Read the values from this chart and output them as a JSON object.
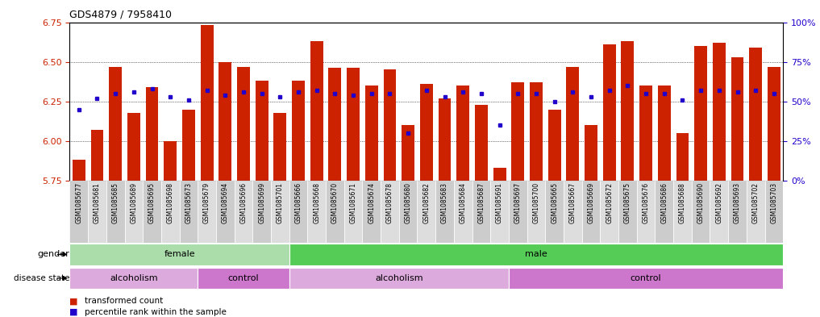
{
  "title": "GDS4879 / 7958410",
  "samples": [
    "GSM1085677",
    "GSM1085681",
    "GSM1085685",
    "GSM1085689",
    "GSM1085695",
    "GSM1085698",
    "GSM1085673",
    "GSM1085679",
    "GSM1085694",
    "GSM1085696",
    "GSM1085699",
    "GSM1085701",
    "GSM1085666",
    "GSM1085668",
    "GSM1085670",
    "GSM1085671",
    "GSM1085674",
    "GSM1085678",
    "GSM1085680",
    "GSM1085682",
    "GSM1085683",
    "GSM1085684",
    "GSM1085687",
    "GSM1085691",
    "GSM1085697",
    "GSM1085700",
    "GSM1085665",
    "GSM1085667",
    "GSM1085669",
    "GSM1085672",
    "GSM1085675",
    "GSM1085676",
    "GSM1085686",
    "GSM1085688",
    "GSM1085690",
    "GSM1085692",
    "GSM1085693",
    "GSM1085702",
    "GSM1085703"
  ],
  "bar_values": [
    5.88,
    6.07,
    6.47,
    6.18,
    6.34,
    6.0,
    6.2,
    6.73,
    6.5,
    6.47,
    6.38,
    6.18,
    6.38,
    6.63,
    6.46,
    6.46,
    6.35,
    6.45,
    6.1,
    6.36,
    6.27,
    6.35,
    6.23,
    5.83,
    6.37,
    6.37,
    6.2,
    6.47,
    6.1,
    6.61,
    6.63,
    6.35,
    6.35,
    6.05,
    6.6,
    6.62,
    6.53,
    6.59,
    6.47
  ],
  "percentile_values": [
    45,
    52,
    55,
    56,
    58,
    53,
    51,
    57,
    54,
    56,
    55,
    53,
    56,
    57,
    55,
    54,
    55,
    55,
    30,
    57,
    53,
    56,
    55,
    35,
    55,
    55,
    50,
    56,
    53,
    57,
    60,
    55,
    55,
    51,
    57,
    57,
    56,
    57,
    55
  ],
  "bar_color": "#cc2200",
  "dot_color": "#2200cc",
  "ymin": 5.75,
  "ymax": 6.75,
  "yticks": [
    5.75,
    6.0,
    6.25,
    6.5,
    6.75
  ],
  "y2ticks": [
    0,
    25,
    50,
    75,
    100
  ],
  "gender_groups": [
    {
      "label": "female",
      "start": 0,
      "end": 12
    },
    {
      "label": "male",
      "start": 12,
      "end": 39
    }
  ],
  "disease_groups": [
    {
      "label": "alcoholism",
      "start": 0,
      "end": 7
    },
    {
      "label": "control",
      "start": 7,
      "end": 12
    },
    {
      "label": "alcoholism",
      "start": 12,
      "end": 24
    },
    {
      "label": "control",
      "start": 24,
      "end": 39
    }
  ],
  "gender_female_color": "#aaddaa",
  "gender_male_color": "#55cc55",
  "disease_alcoholism_color": "#ddaadd",
  "disease_control_color": "#cc77cc",
  "sample_box_color": "#cccccc",
  "sample_box_alt_color": "#dddddd",
  "chart_bg_color": "#ffffff",
  "gender_label": "gender",
  "disease_label": "disease state",
  "legend_bar_label": "transformed count",
  "legend_dot_label": "percentile rank within the sample"
}
